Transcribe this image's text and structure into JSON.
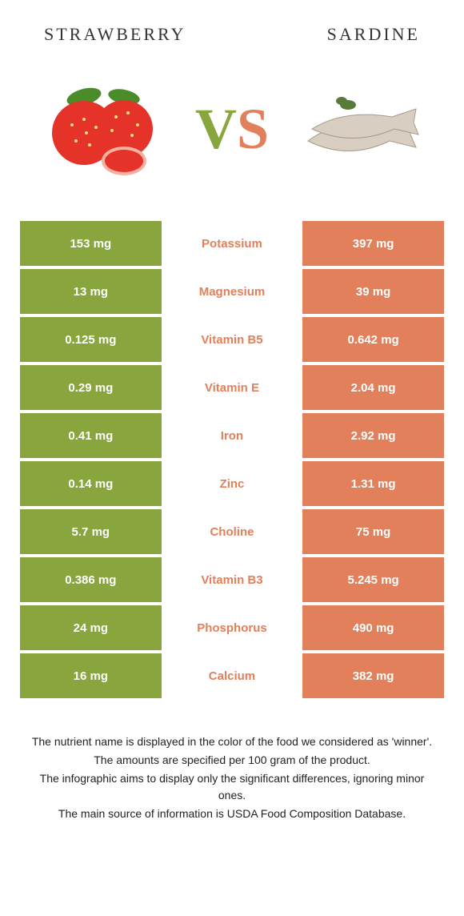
{
  "header": {
    "left_title": "Strawberry",
    "right_title": "Sardine"
  },
  "hero": {
    "vs_left_letter": "V",
    "vs_right_letter": "S",
    "left_color": "#89a63e",
    "right_color": "#e1805a"
  },
  "colors": {
    "left_bg": "#89a63e",
    "right_bg": "#e1805a",
    "text_white": "#ffffff"
  },
  "table": {
    "rows": [
      {
        "left": "153 mg",
        "label": "Potassium",
        "right": "397 mg",
        "winner": "right"
      },
      {
        "left": "13 mg",
        "label": "Magnesium",
        "right": "39 mg",
        "winner": "right"
      },
      {
        "left": "0.125 mg",
        "label": "Vitamin B5",
        "right": "0.642 mg",
        "winner": "right"
      },
      {
        "left": "0.29 mg",
        "label": "Vitamin E",
        "right": "2.04 mg",
        "winner": "right"
      },
      {
        "left": "0.41 mg",
        "label": "Iron",
        "right": "2.92 mg",
        "winner": "right"
      },
      {
        "left": "0.14 mg",
        "label": "Zinc",
        "right": "1.31 mg",
        "winner": "right"
      },
      {
        "left": "5.7 mg",
        "label": "Choline",
        "right": "75 mg",
        "winner": "right"
      },
      {
        "left": "0.386 mg",
        "label": "Vitamin B3",
        "right": "5.245 mg",
        "winner": "right"
      },
      {
        "left": "24 mg",
        "label": "Phosphorus",
        "right": "490 mg",
        "winner": "right"
      },
      {
        "left": "16 mg",
        "label": "Calcium",
        "right": "382 mg",
        "winner": "right"
      }
    ]
  },
  "footer": {
    "line1": "The nutrient name is displayed in the color of the food we considered as 'winner'.",
    "line2": "The amounts are specified per 100 gram of the product.",
    "line3": "The infographic aims to display only the significant differences, ignoring minor ones.",
    "line4": "The main source of information is USDA Food Composition Database."
  }
}
